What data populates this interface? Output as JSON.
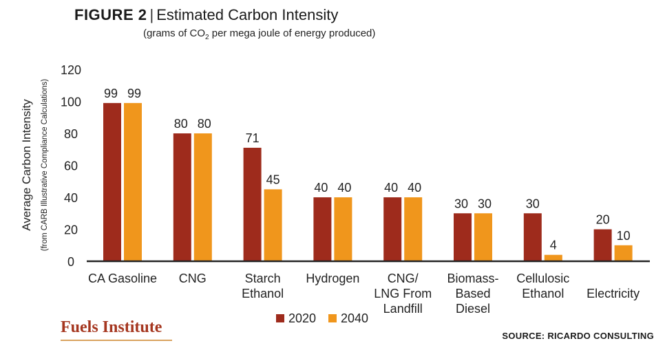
{
  "figure": {
    "label": "FIGURE 2",
    "separator": "|",
    "title": "Estimated Carbon Intensity",
    "subtitle_pre": "(grams of CO",
    "subtitle_sub": "2",
    "subtitle_post": " per mega joule of energy produced)"
  },
  "branding": {
    "logo_text": "Fuels Institute",
    "source": "SOURCE: RICARDO CONSULTING"
  },
  "colors": {
    "series_2020": "#9e2b1c",
    "series_2040": "#f0961c",
    "axis": "#222222",
    "logo": "#a5361f"
  },
  "chart_data": {
    "type": "bar",
    "title": "Estimated Carbon Intensity",
    "ylabel": "Average Carbon Intensity",
    "ylabel_sub": "(from CARB Illustrative Compliance Calculations)",
    "xlabel": "",
    "ylim": [
      0,
      120
    ],
    "yticks": [
      0,
      20,
      40,
      60,
      80,
      100,
      120
    ],
    "grid": false,
    "legend_position": "bottom-center",
    "categories": [
      [
        "CA Gasoline"
      ],
      [
        "CNG"
      ],
      [
        "Starch",
        "Ethanol"
      ],
      [
        "Hydrogen"
      ],
      [
        "CNG/",
        "LNG From",
        "Landfill"
      ],
      [
        "Biomass-",
        "Based",
        "Diesel"
      ],
      [
        "Cellulosic",
        "Ethanol"
      ],
      [
        "Electricity"
      ]
    ],
    "series": [
      {
        "name": "2020",
        "color": "#9e2b1c",
        "values": [
          99,
          80,
          71,
          40,
          40,
          30,
          30,
          20
        ]
      },
      {
        "name": "2040",
        "color": "#f0961c",
        "values": [
          99,
          80,
          45,
          40,
          40,
          30,
          4,
          10
        ]
      }
    ]
  }
}
